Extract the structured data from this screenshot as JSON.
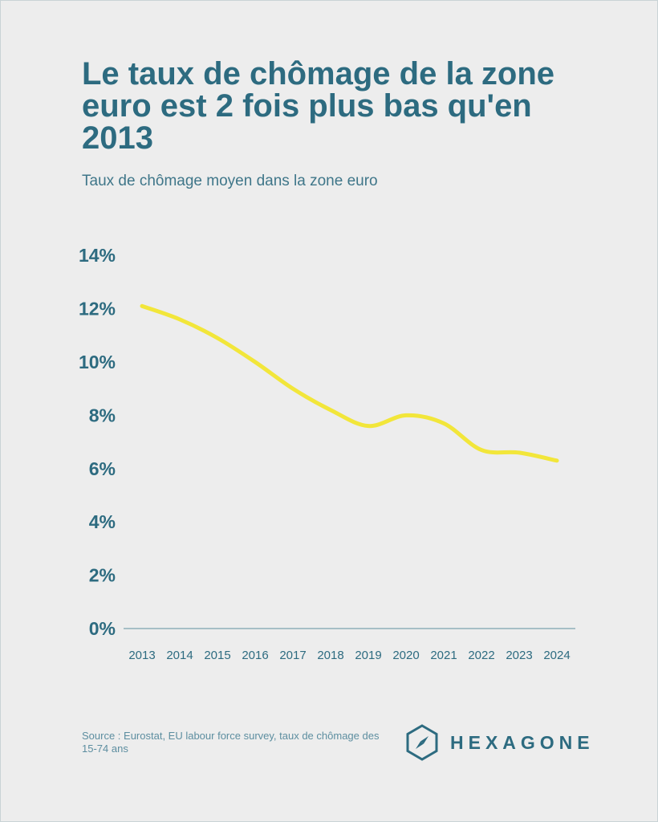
{
  "header": {
    "title": "Le taux de chômage de la zone euro est 2 fois plus bas qu'en 2013",
    "subtitle": "Taux de chômage moyen dans la zone euro"
  },
  "footer": {
    "source": "Source : Eurostat, EU labour force survey, taux de chômage des 15-74 ans",
    "brand": "HEXAGONE"
  },
  "colors": {
    "background": "#ededed",
    "text": "#2d6b80",
    "line": "#f2e63a",
    "axis": "#8fb0ba"
  },
  "chart_data": {
    "type": "line",
    "title": "Le taux de chômage de la zone euro est 2 fois plus bas qu'en 2013",
    "subtitle": "Taux de chômage moyen dans la zone euro",
    "x": [
      "2013",
      "2014",
      "2015",
      "2016",
      "2017",
      "2018",
      "2019",
      "2020",
      "2021",
      "2022",
      "2023",
      "2024"
    ],
    "series": [
      {
        "values": [
          12.1,
          11.6,
          10.9,
          10.0,
          9.0,
          8.2,
          7.6,
          8.0,
          7.7,
          6.7,
          6.6,
          6.3
        ]
      }
    ],
    "y_ticks": [
      "0%",
      "2%",
      "4%",
      "6%",
      "8%",
      "10%",
      "12%",
      "14%"
    ],
    "ylim": [
      0,
      14
    ],
    "grid": false,
    "legend": "none",
    "xlabel": "",
    "ylabel": ""
  }
}
